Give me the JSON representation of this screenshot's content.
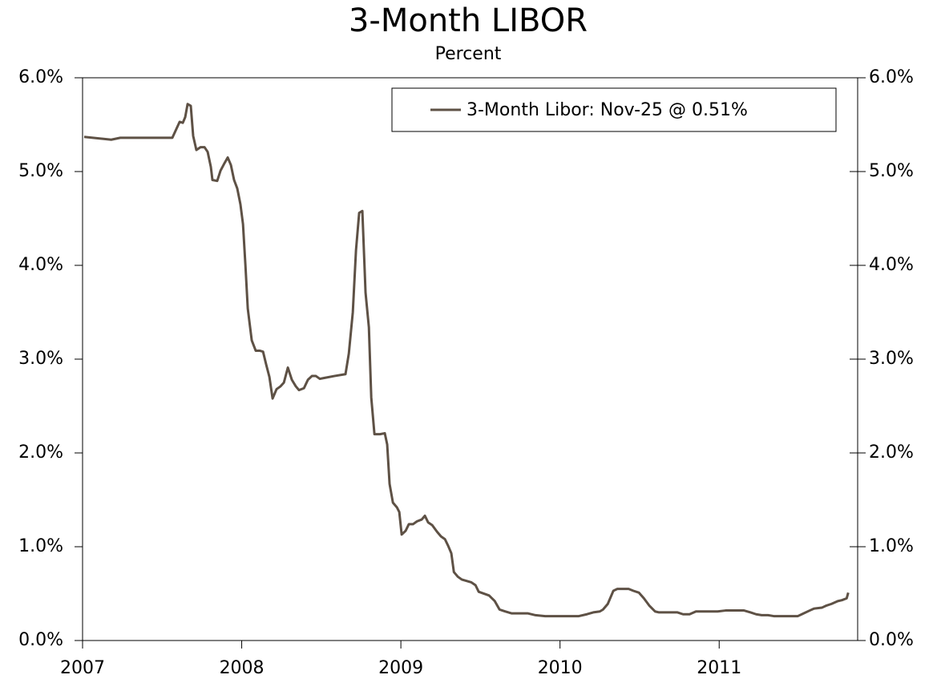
{
  "chart_data": {
    "type": "line",
    "title": "3-Month LIBOR",
    "subtitle": "Percent",
    "x": [
      2007.01,
      2007.18,
      2007.237,
      2007.564,
      2007.61,
      2007.63,
      2007.645,
      2007.66,
      2007.68,
      2007.695,
      2007.715,
      2007.741,
      2007.766,
      2007.786,
      2007.806,
      2007.816,
      2007.846,
      2007.867,
      2007.892,
      2007.912,
      2007.932,
      2007.952,
      2007.972,
      2007.992,
      2008.008,
      2008.023,
      2008.038,
      2008.063,
      2008.088,
      2008.113,
      2008.134,
      2008.154,
      2008.174,
      2008.194,
      2008.219,
      2008.244,
      2008.265,
      2008.29,
      2008.315,
      2008.34,
      2008.36,
      2008.391,
      2008.416,
      2008.441,
      2008.466,
      2008.491,
      2008.521,
      2008.582,
      2008.652,
      2008.673,
      2008.698,
      2008.718,
      2008.738,
      2008.758,
      2008.778,
      2008.799,
      2008.814,
      2008.834,
      2008.869,
      2008.899,
      2008.914,
      2008.929,
      2008.95,
      2008.975,
      2008.99,
      2009.005,
      2009.03,
      2009.05,
      2009.076,
      2009.101,
      2009.131,
      2009.151,
      2009.171,
      2009.197,
      2009.227,
      2009.252,
      2009.277,
      2009.297,
      2009.317,
      2009.333,
      2009.358,
      2009.383,
      2009.443,
      2009.469,
      2009.489,
      2009.554,
      2009.59,
      2009.62,
      2009.655,
      2009.695,
      2009.796,
      2009.846,
      2009.907,
      2010.118,
      2010.169,
      2010.209,
      2010.25,
      2010.27,
      2010.3,
      2010.335,
      2010.36,
      2010.431,
      2010.461,
      2010.496,
      2010.527,
      2010.562,
      2010.597,
      2010.622,
      2010.738,
      2010.773,
      2010.814,
      2010.854,
      2010.99,
      2011.04,
      2011.156,
      2011.197,
      2011.232,
      2011.267,
      2011.307,
      2011.343,
      2011.494,
      2011.519,
      2011.569,
      2011.595,
      2011.645,
      2011.67,
      2011.705,
      2011.745,
      2011.771,
      2011.801,
      2011.811
    ],
    "series": [
      {
        "name": "3-Month Libor: Nov-25 @ 0.51%",
        "color": "#5e5145",
        "values": [
          5.37,
          5.34,
          5.36,
          5.36,
          5.53,
          5.52,
          5.58,
          5.72,
          5.7,
          5.38,
          5.23,
          5.26,
          5.26,
          5.21,
          5.05,
          4.91,
          4.9,
          5.01,
          5.09,
          5.15,
          5.07,
          4.91,
          4.82,
          4.65,
          4.44,
          4.01,
          3.54,
          3.2,
          3.09,
          3.09,
          3.08,
          2.94,
          2.81,
          2.58,
          2.68,
          2.71,
          2.75,
          2.91,
          2.78,
          2.71,
          2.67,
          2.69,
          2.78,
          2.82,
          2.82,
          2.79,
          2.8,
          2.82,
          2.84,
          3.06,
          3.5,
          4.16,
          4.56,
          4.58,
          3.71,
          3.34,
          2.59,
          2.2,
          2.2,
          2.21,
          2.09,
          1.67,
          1.47,
          1.42,
          1.37,
          1.13,
          1.17,
          1.24,
          1.24,
          1.27,
          1.29,
          1.33,
          1.26,
          1.23,
          1.16,
          1.11,
          1.08,
          1.01,
          0.93,
          0.73,
          0.68,
          0.65,
          0.62,
          0.59,
          0.52,
          0.48,
          0.42,
          0.33,
          0.31,
          0.29,
          0.29,
          0.27,
          0.26,
          0.26,
          0.28,
          0.3,
          0.31,
          0.33,
          0.39,
          0.53,
          0.55,
          0.55,
          0.53,
          0.51,
          0.45,
          0.37,
          0.31,
          0.3,
          0.3,
          0.28,
          0.28,
          0.31,
          0.31,
          0.32,
          0.32,
          0.3,
          0.28,
          0.27,
          0.27,
          0.26,
          0.26,
          0.28,
          0.32,
          0.34,
          0.35,
          0.37,
          0.39,
          0.42,
          0.43,
          0.45,
          0.51
        ]
      }
    ],
    "xlim": [
      2007,
      2011.87
    ],
    "xticks": [
      2007,
      2008,
      2009,
      2010,
      2011
    ],
    "ylim": [
      0,
      6
    ],
    "yticks": [
      {
        "value": 0,
        "label": "0.0%"
      },
      {
        "value": 1,
        "label": "1.0%"
      },
      {
        "value": 2,
        "label": "2.0%"
      },
      {
        "value": 3,
        "label": "3.0%"
      },
      {
        "value": 4,
        "label": "4.0%"
      },
      {
        "value": 5,
        "label": "5.0%"
      },
      {
        "value": 6,
        "label": "6.0%"
      }
    ],
    "y2lim": [
      0,
      6
    ],
    "y2ticks": [
      {
        "value": 0,
        "label": "0.0%"
      },
      {
        "value": 1,
        "label": "1.0%"
      },
      {
        "value": 2,
        "label": "2.0%"
      },
      {
        "value": 3,
        "label": "3.0%"
      },
      {
        "value": 4,
        "label": "4.0%"
      },
      {
        "value": 5,
        "label": "5.0%"
      },
      {
        "value": 6,
        "label": "6.0%"
      }
    ],
    "legend": "top-right",
    "grid": false
  }
}
